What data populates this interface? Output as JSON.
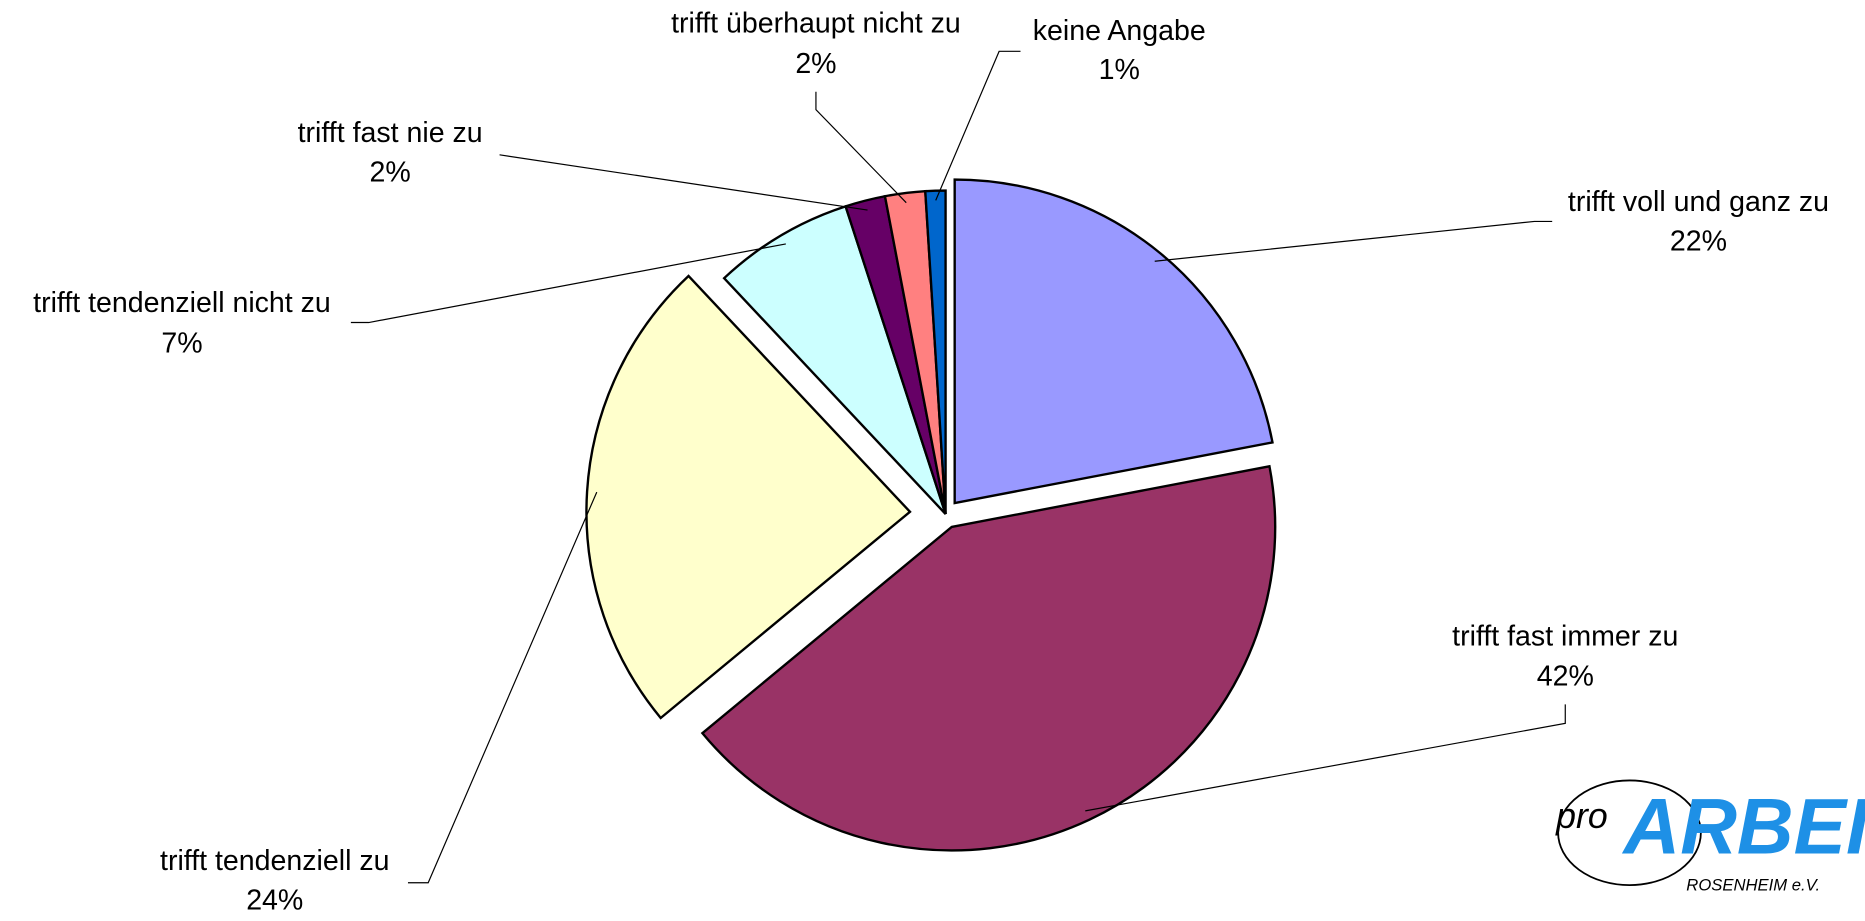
{
  "chart_data": {
    "type": "pie",
    "categories": [
      "trifft voll und ganz zu",
      "trifft fast immer zu",
      "trifft tendenziell zu",
      "trifft tendenziell nicht zu",
      "trifft fast nie zu",
      "trifft überhaupt nicht zu",
      "keine Angabe"
    ],
    "values": [
      22,
      42,
      24,
      7,
      2,
      2,
      1
    ],
    "value_labels": [
      "22%",
      "42%",
      "24%",
      "7%",
      "2%",
      "2%",
      "1%"
    ],
    "colors": [
      "#9999ff",
      "#993366",
      "#ffffcc",
      "#ccffff",
      "#660066",
      "#ff8080",
      "#0066cc"
    ]
  },
  "logo": {
    "prefix": "pro",
    "name": "ARBEIT",
    "place": "ROSENHEIM e.V."
  }
}
